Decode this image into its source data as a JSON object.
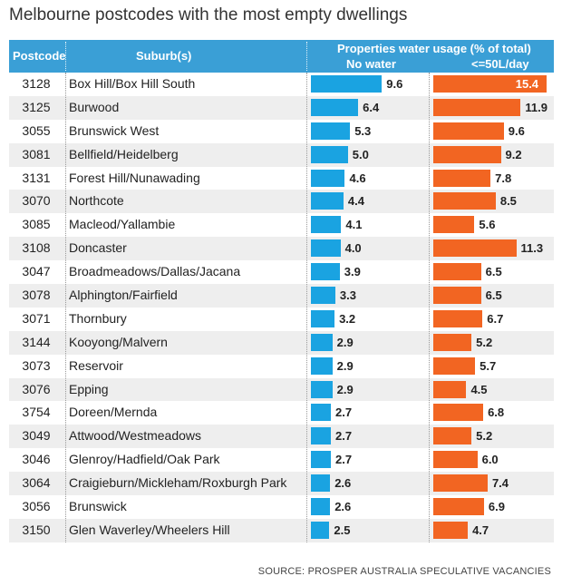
{
  "title": "Melbourne postcodes with the most empty dwellings",
  "header": {
    "postcode": "Postcode",
    "suburbs": "Suburb(s)",
    "group": "Properties water usage (% of total)",
    "col_no_water": "No water",
    "col_low": "<=50L/day"
  },
  "source": "SOURCE: PROSPER AUSTRALIA SPECULATIVE VACANCIES",
  "colors": {
    "header": "#3a9fd6",
    "no_water": "#1aa3e1",
    "low_usage": "#f26522"
  },
  "chart_data": {
    "type": "bar",
    "orientation": "horizontal",
    "title": "Melbourne postcodes with the most empty dwellings",
    "columns": [
      "Postcode",
      "Suburb(s)",
      "No water",
      "<=50L/day"
    ],
    "rows": [
      {
        "postcode": "3128",
        "suburbs": "Box Hill/Box Hill South",
        "no_water": 9.6,
        "low_usage": 15.4
      },
      {
        "postcode": "3125",
        "suburbs": "Burwood",
        "no_water": 6.4,
        "low_usage": 11.9
      },
      {
        "postcode": "3055",
        "suburbs": "Brunswick West",
        "no_water": 5.3,
        "low_usage": 9.6
      },
      {
        "postcode": "3081",
        "suburbs": "Bellfield/Heidelberg",
        "no_water": 5.0,
        "low_usage": 9.2
      },
      {
        "postcode": "3131",
        "suburbs": "Forest Hill/Nunawading",
        "no_water": 4.6,
        "low_usage": 7.8
      },
      {
        "postcode": "3070",
        "suburbs": "Northcote",
        "no_water": 4.4,
        "low_usage": 8.5
      },
      {
        "postcode": "3085",
        "suburbs": "Macleod/Yallambie",
        "no_water": 4.1,
        "low_usage": 5.6
      },
      {
        "postcode": "3108",
        "suburbs": "Doncaster",
        "no_water": 4.0,
        "low_usage": 11.3
      },
      {
        "postcode": "3047",
        "suburbs": "Broadmeadows/Dallas/Jacana",
        "no_water": 3.9,
        "low_usage": 6.5
      },
      {
        "postcode": "3078",
        "suburbs": "Alphington/Fairfield",
        "no_water": 3.3,
        "low_usage": 6.5
      },
      {
        "postcode": "3071",
        "suburbs": "Thornbury",
        "no_water": 3.2,
        "low_usage": 6.7
      },
      {
        "postcode": "3144",
        "suburbs": "Kooyong/Malvern",
        "no_water": 2.9,
        "low_usage": 5.2
      },
      {
        "postcode": "3073",
        "suburbs": "Reservoir",
        "no_water": 2.9,
        "low_usage": 5.7
      },
      {
        "postcode": "3076",
        "suburbs": "Epping",
        "no_water": 2.9,
        "low_usage": 4.5
      },
      {
        "postcode": "3754",
        "suburbs": "Doreen/Mernda",
        "no_water": 2.7,
        "low_usage": 6.8
      },
      {
        "postcode": "3049",
        "suburbs": "Attwood/Westmeadows",
        "no_water": 2.7,
        "low_usage": 5.2
      },
      {
        "postcode": "3046",
        "suburbs": "Glenroy/Hadfield/Oak Park",
        "no_water": 2.7,
        "low_usage": 6.0
      },
      {
        "postcode": "3064",
        "suburbs": "Craigieburn/Mickleham/Roxburgh Park",
        "no_water": 2.6,
        "low_usage": 7.4
      },
      {
        "postcode": "3056",
        "suburbs": "Brunswick",
        "no_water": 2.6,
        "low_usage": 6.9
      },
      {
        "postcode": "3150",
        "suburbs": "Glen Waverley/Wheelers Hill",
        "no_water": 2.5,
        "low_usage": 4.7
      }
    ]
  }
}
